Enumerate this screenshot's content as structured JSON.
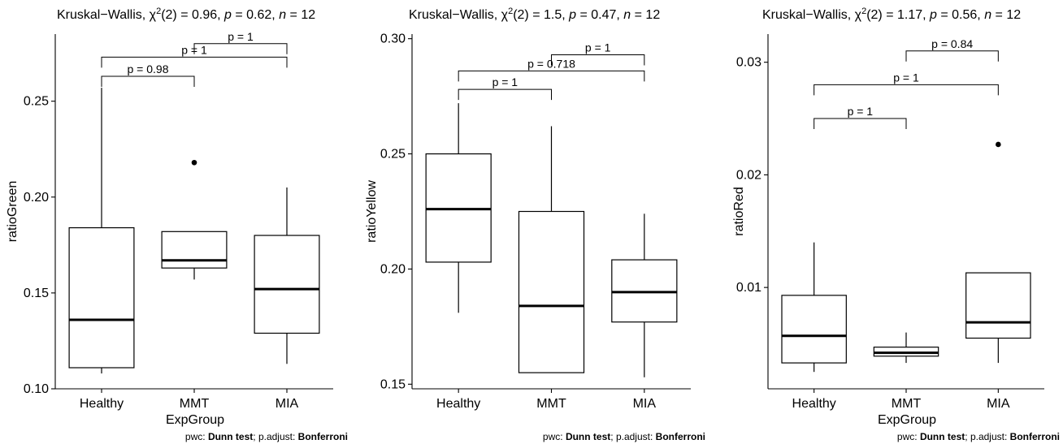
{
  "chart_data": [
    {
      "type": "box",
      "title": {
        "main": "Kruskal−Wallis, χ",
        "sup": "2",
        "stat": "(2) = 0.96, ",
        "p": "p",
        "p_value": " = 0.62, ",
        "n": "n",
        "n_value": " = 12"
      },
      "xlabel": "ExpGroup",
      "ylabel": "ratioGreen",
      "categories": [
        "Healthy",
        "MMT",
        "MIA"
      ],
      "ylim": [
        0.1,
        0.285
      ],
      "yticks": [
        0.1,
        0.15,
        0.2,
        0.25
      ],
      "yticklabels": [
        "0.10",
        "0.15",
        "0.20",
        "0.25"
      ],
      "boxes": [
        {
          "whisker_low": 0.108,
          "q1": 0.111,
          "median": 0.136,
          "q3": 0.184,
          "whisker_high": 0.257,
          "outliers": []
        },
        {
          "whisker_low": 0.157,
          "q1": 0.163,
          "median": 0.167,
          "q3": 0.182,
          "whisker_high": 0.182,
          "outliers": [
            0.218
          ]
        },
        {
          "whisker_low": 0.113,
          "q1": 0.129,
          "median": 0.152,
          "q3": 0.18,
          "whisker_high": 0.205,
          "outliers": []
        }
      ],
      "comparisons": [
        {
          "from": 0,
          "to": 1,
          "label": "p = 0.98",
          "y": 0.263
        },
        {
          "from": 0,
          "to": 2,
          "label": "p = 1",
          "y": 0.273
        },
        {
          "from": 1,
          "to": 2,
          "label": "p = 1",
          "y": 0.28
        }
      ],
      "caption": {
        "pre": "pwc: ",
        "test": "Dunn test",
        "mid": "; p.adjust: ",
        "adjust": "Bonferroni"
      }
    },
    {
      "type": "box",
      "title": {
        "main": "Kruskal−Wallis, χ",
        "sup": "2",
        "stat": "(2) = 1.5, ",
        "p": "p",
        "p_value": " = 0.47, ",
        "n": "n",
        "n_value": " = 12"
      },
      "xlabel": "",
      "ylabel": "ratioYellow",
      "categories": [
        "Healthy",
        "MMT",
        "MIA"
      ],
      "ylim": [
        0.148,
        0.302
      ],
      "yticks": [
        0.15,
        0.2,
        0.25,
        0.3
      ],
      "yticklabels": [
        "0.15",
        "0.20",
        "0.25",
        "0.30"
      ],
      "boxes": [
        {
          "whisker_low": 0.181,
          "q1": 0.203,
          "median": 0.226,
          "q3": 0.25,
          "whisker_high": 0.272,
          "outliers": []
        },
        {
          "whisker_low": 0.155,
          "q1": 0.155,
          "median": 0.184,
          "q3": 0.225,
          "whisker_high": 0.262,
          "outliers": []
        },
        {
          "whisker_low": 0.153,
          "q1": 0.177,
          "median": 0.19,
          "q3": 0.204,
          "whisker_high": 0.224,
          "outliers": []
        }
      ],
      "comparisons": [
        {
          "from": 0,
          "to": 1,
          "label": "p = 1",
          "y": 0.278
        },
        {
          "from": 0,
          "to": 2,
          "label": "p = 0.718",
          "y": 0.286
        },
        {
          "from": 1,
          "to": 2,
          "label": "p = 1",
          "y": 0.293
        }
      ],
      "caption": {
        "pre": "pwc: ",
        "test": "Dunn test",
        "mid": "; p.adjust: ",
        "adjust": "Bonferroni"
      }
    },
    {
      "type": "box",
      "title": {
        "main": "Kruskal−Wallis, χ",
        "sup": "2",
        "stat": "(2) = 1.17, ",
        "p": "p",
        "p_value": " = 0.56, ",
        "n": "n",
        "n_value": " = 12"
      },
      "xlabel": "ExpGroup",
      "ylabel": "ratioRed",
      "categories": [
        "Healthy",
        "MMT",
        "MIA"
      ],
      "ylim": [
        0.001,
        0.0325
      ],
      "yticks": [
        0.01,
        0.02,
        0.03
      ],
      "yticklabels": [
        "0.01",
        "0.02",
        "0.03"
      ],
      "boxes": [
        {
          "whisker_low": 0.0025,
          "q1": 0.0033,
          "median": 0.0057,
          "q3": 0.0093,
          "whisker_high": 0.014,
          "outliers": []
        },
        {
          "whisker_low": 0.0033,
          "q1": 0.0039,
          "median": 0.0042,
          "q3": 0.0047,
          "whisker_high": 0.006,
          "outliers": []
        },
        {
          "whisker_low": 0.0033,
          "q1": 0.0055,
          "median": 0.0069,
          "q3": 0.0113,
          "whisker_high": 0.0113,
          "outliers": [
            0.0227
          ]
        }
      ],
      "comparisons": [
        {
          "from": 0,
          "to": 1,
          "label": "p = 1",
          "y": 0.025
        },
        {
          "from": 0,
          "to": 2,
          "label": "p = 1",
          "y": 0.028
        },
        {
          "from": 1,
          "to": 2,
          "label": "p = 0.84",
          "y": 0.031
        }
      ],
      "caption": {
        "pre": "pwc: ",
        "test": "Dunn test",
        "mid": "; p.adjust: ",
        "adjust": "Bonferroni"
      }
    }
  ]
}
